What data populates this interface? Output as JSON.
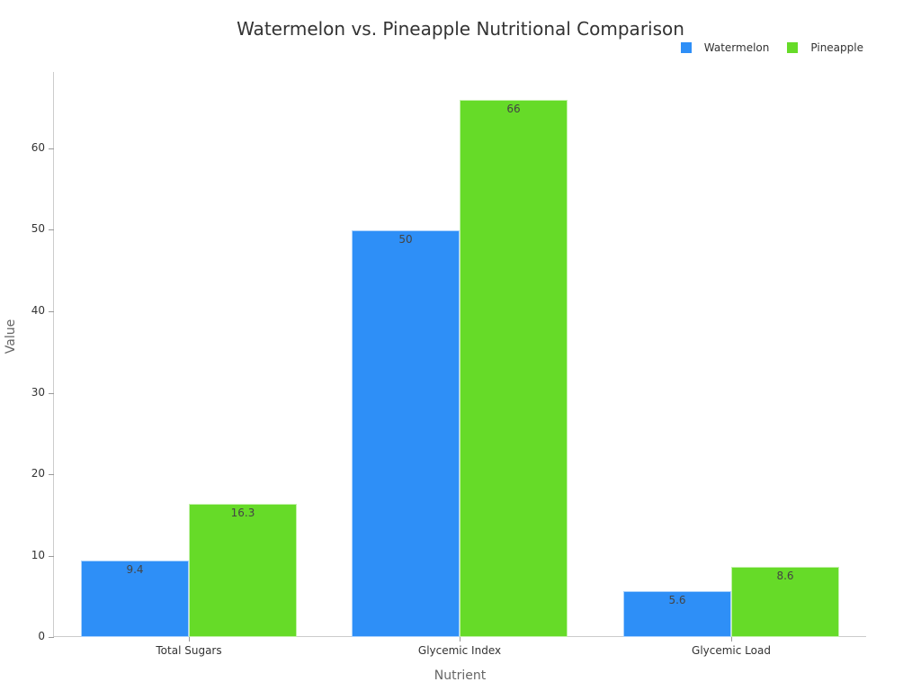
{
  "chart_data": {
    "type": "bar",
    "title": "Watermelon vs. Pineapple Nutritional Comparison",
    "xlabel": "Nutrient",
    "ylabel": "Value",
    "categories": [
      "Total Sugars",
      "Glycemic Index",
      "Glycemic Load"
    ],
    "series": [
      {
        "name": "Watermelon",
        "color": "#2E8FF7",
        "values": [
          9.4,
          50,
          5.6
        ],
        "labels": [
          "9.4",
          "50",
          "5.6"
        ]
      },
      {
        "name": "Pineapple",
        "color": "#66DB28",
        "values": [
          16.3,
          66,
          8.6
        ],
        "labels": [
          "16.3",
          "66",
          "8.6"
        ]
      }
    ],
    "yticks": [
      0,
      10,
      20,
      30,
      40,
      50,
      60
    ],
    "ylim": [
      0,
      69.4
    ],
    "grid": false,
    "legend_position": "top-right"
  }
}
